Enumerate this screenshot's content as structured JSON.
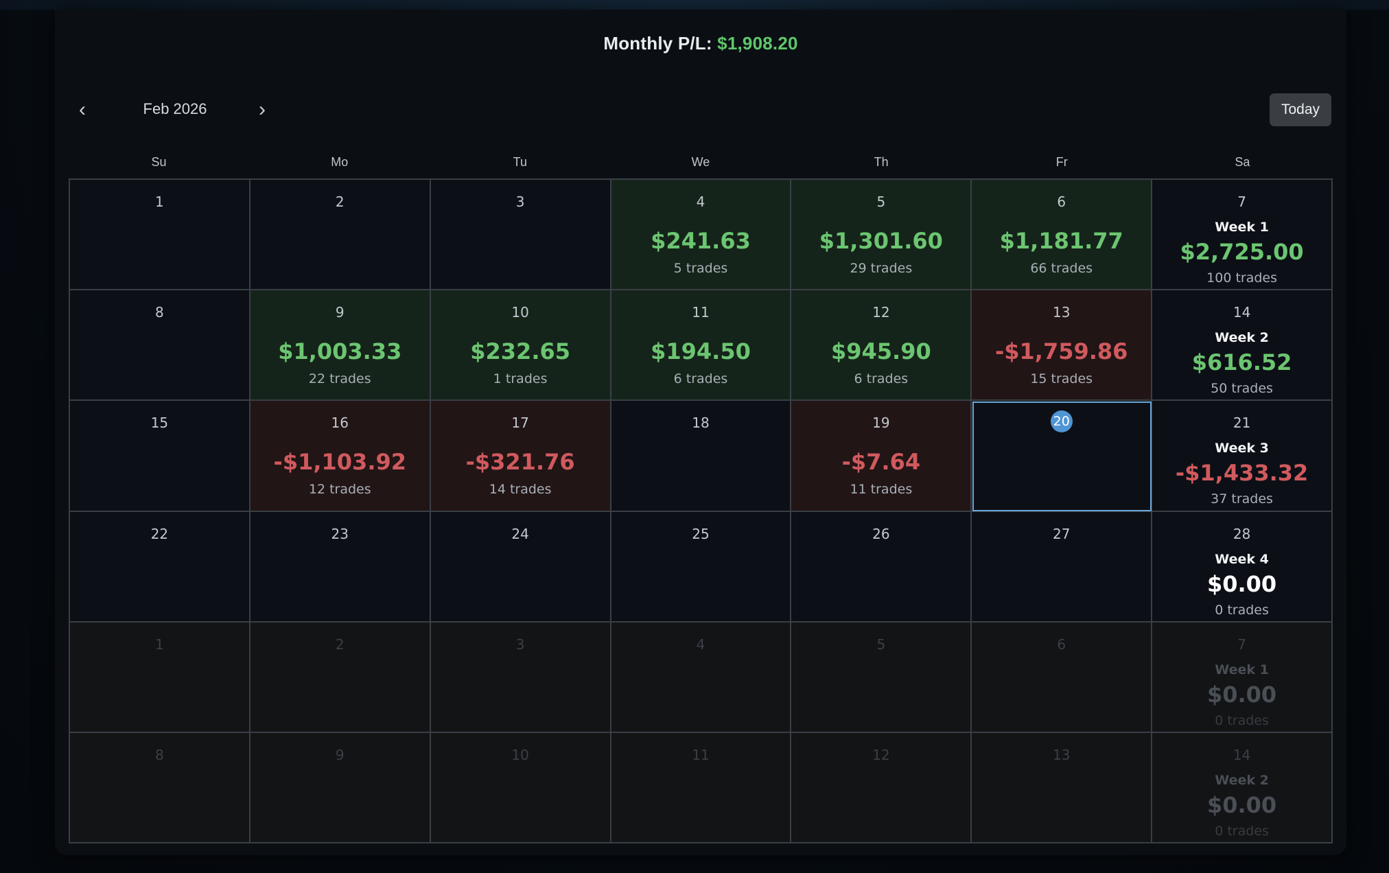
{
  "header": {
    "monthly_label": "Monthly P/L:",
    "monthly_value": "$1,908.20"
  },
  "nav": {
    "prev_icon": "chevron-left-icon",
    "next_icon": "chevron-right-icon",
    "month_label": "Feb 2026",
    "today_label": "Today"
  },
  "weekdays": [
    "Su",
    "Mo",
    "Tu",
    "We",
    "Th",
    "Fr",
    "Sa"
  ],
  "colors": {
    "positive": "#6cc571",
    "negative": "#d05a5e",
    "today_accent": "#4f95d4"
  },
  "rows": [
    {
      "days": [
        {
          "day": "1",
          "pl": "",
          "trades": "",
          "status": "empty"
        },
        {
          "day": "2",
          "pl": "",
          "trades": "",
          "status": "empty"
        },
        {
          "day": "3",
          "pl": "",
          "trades": "",
          "status": "empty"
        },
        {
          "day": "4",
          "pl": "$241.63",
          "trades": "5 trades",
          "status": "pos"
        },
        {
          "day": "5",
          "pl": "$1,301.60",
          "trades": "29 trades",
          "status": "pos"
        },
        {
          "day": "6",
          "pl": "$1,181.77",
          "trades": "66 trades",
          "status": "pos"
        }
      ],
      "summary": {
        "day": "7",
        "week": "Week 1",
        "pl": "$2,725.00",
        "trades": "100 trades",
        "status": "pos"
      },
      "other_month": false
    },
    {
      "days": [
        {
          "day": "8",
          "pl": "",
          "trades": "",
          "status": "empty"
        },
        {
          "day": "9",
          "pl": "$1,003.33",
          "trades": "22 trades",
          "status": "pos"
        },
        {
          "day": "10",
          "pl": "$232.65",
          "trades": "1 trades",
          "status": "pos"
        },
        {
          "day": "11",
          "pl": "$194.50",
          "trades": "6 trades",
          "status": "pos"
        },
        {
          "day": "12",
          "pl": "$945.90",
          "trades": "6 trades",
          "status": "pos"
        },
        {
          "day": "13",
          "pl": "-$1,759.86",
          "trades": "15 trades",
          "status": "neg"
        }
      ],
      "summary": {
        "day": "14",
        "week": "Week 2",
        "pl": "$616.52",
        "trades": "50 trades",
        "status": "pos"
      },
      "other_month": false
    },
    {
      "days": [
        {
          "day": "15",
          "pl": "",
          "trades": "",
          "status": "empty"
        },
        {
          "day": "16",
          "pl": "-$1,103.92",
          "trades": "12 trades",
          "status": "neg"
        },
        {
          "day": "17",
          "pl": "-$321.76",
          "trades": "14 trades",
          "status": "neg"
        },
        {
          "day": "18",
          "pl": "",
          "trades": "",
          "status": "empty"
        },
        {
          "day": "19",
          "pl": "-$7.64",
          "trades": "11 trades",
          "status": "neg"
        },
        {
          "day": "20",
          "pl": "",
          "trades": "",
          "status": "today"
        }
      ],
      "summary": {
        "day": "21",
        "week": "Week 3",
        "pl": "-$1,433.32",
        "trades": "37 trades",
        "status": "neg"
      },
      "other_month": false
    },
    {
      "days": [
        {
          "day": "22",
          "pl": "",
          "trades": "",
          "status": "empty"
        },
        {
          "day": "23",
          "pl": "",
          "trades": "",
          "status": "empty"
        },
        {
          "day": "24",
          "pl": "",
          "trades": "",
          "status": "empty"
        },
        {
          "day": "25",
          "pl": "",
          "trades": "",
          "status": "empty"
        },
        {
          "day": "26",
          "pl": "",
          "trades": "",
          "status": "empty"
        },
        {
          "day": "27",
          "pl": "",
          "trades": "",
          "status": "empty"
        }
      ],
      "summary": {
        "day": "28",
        "week": "Week 4",
        "pl": "$0.00",
        "trades": "0 trades",
        "status": "zero"
      },
      "other_month": false
    },
    {
      "days": [
        {
          "day": "1",
          "pl": "",
          "trades": "",
          "status": "empty"
        },
        {
          "day": "2",
          "pl": "",
          "trades": "",
          "status": "empty"
        },
        {
          "day": "3",
          "pl": "",
          "trades": "",
          "status": "empty"
        },
        {
          "day": "4",
          "pl": "",
          "trades": "",
          "status": "empty"
        },
        {
          "day": "5",
          "pl": "",
          "trades": "",
          "status": "empty"
        },
        {
          "day": "6",
          "pl": "",
          "trades": "",
          "status": "empty"
        }
      ],
      "summary": {
        "day": "7",
        "week": "Week 1",
        "pl": "$0.00",
        "trades": "0 trades",
        "status": "zero"
      },
      "other_month": true
    },
    {
      "days": [
        {
          "day": "8",
          "pl": "",
          "trades": "",
          "status": "empty"
        },
        {
          "day": "9",
          "pl": "",
          "trades": "",
          "status": "empty"
        },
        {
          "day": "10",
          "pl": "",
          "trades": "",
          "status": "empty"
        },
        {
          "day": "11",
          "pl": "",
          "trades": "",
          "status": "empty"
        },
        {
          "day": "12",
          "pl": "",
          "trades": "",
          "status": "empty"
        },
        {
          "day": "13",
          "pl": "",
          "trades": "",
          "status": "empty"
        }
      ],
      "summary": {
        "day": "14",
        "week": "Week 2",
        "pl": "$0.00",
        "trades": "0 trades",
        "status": "zero"
      },
      "other_month": true
    }
  ]
}
